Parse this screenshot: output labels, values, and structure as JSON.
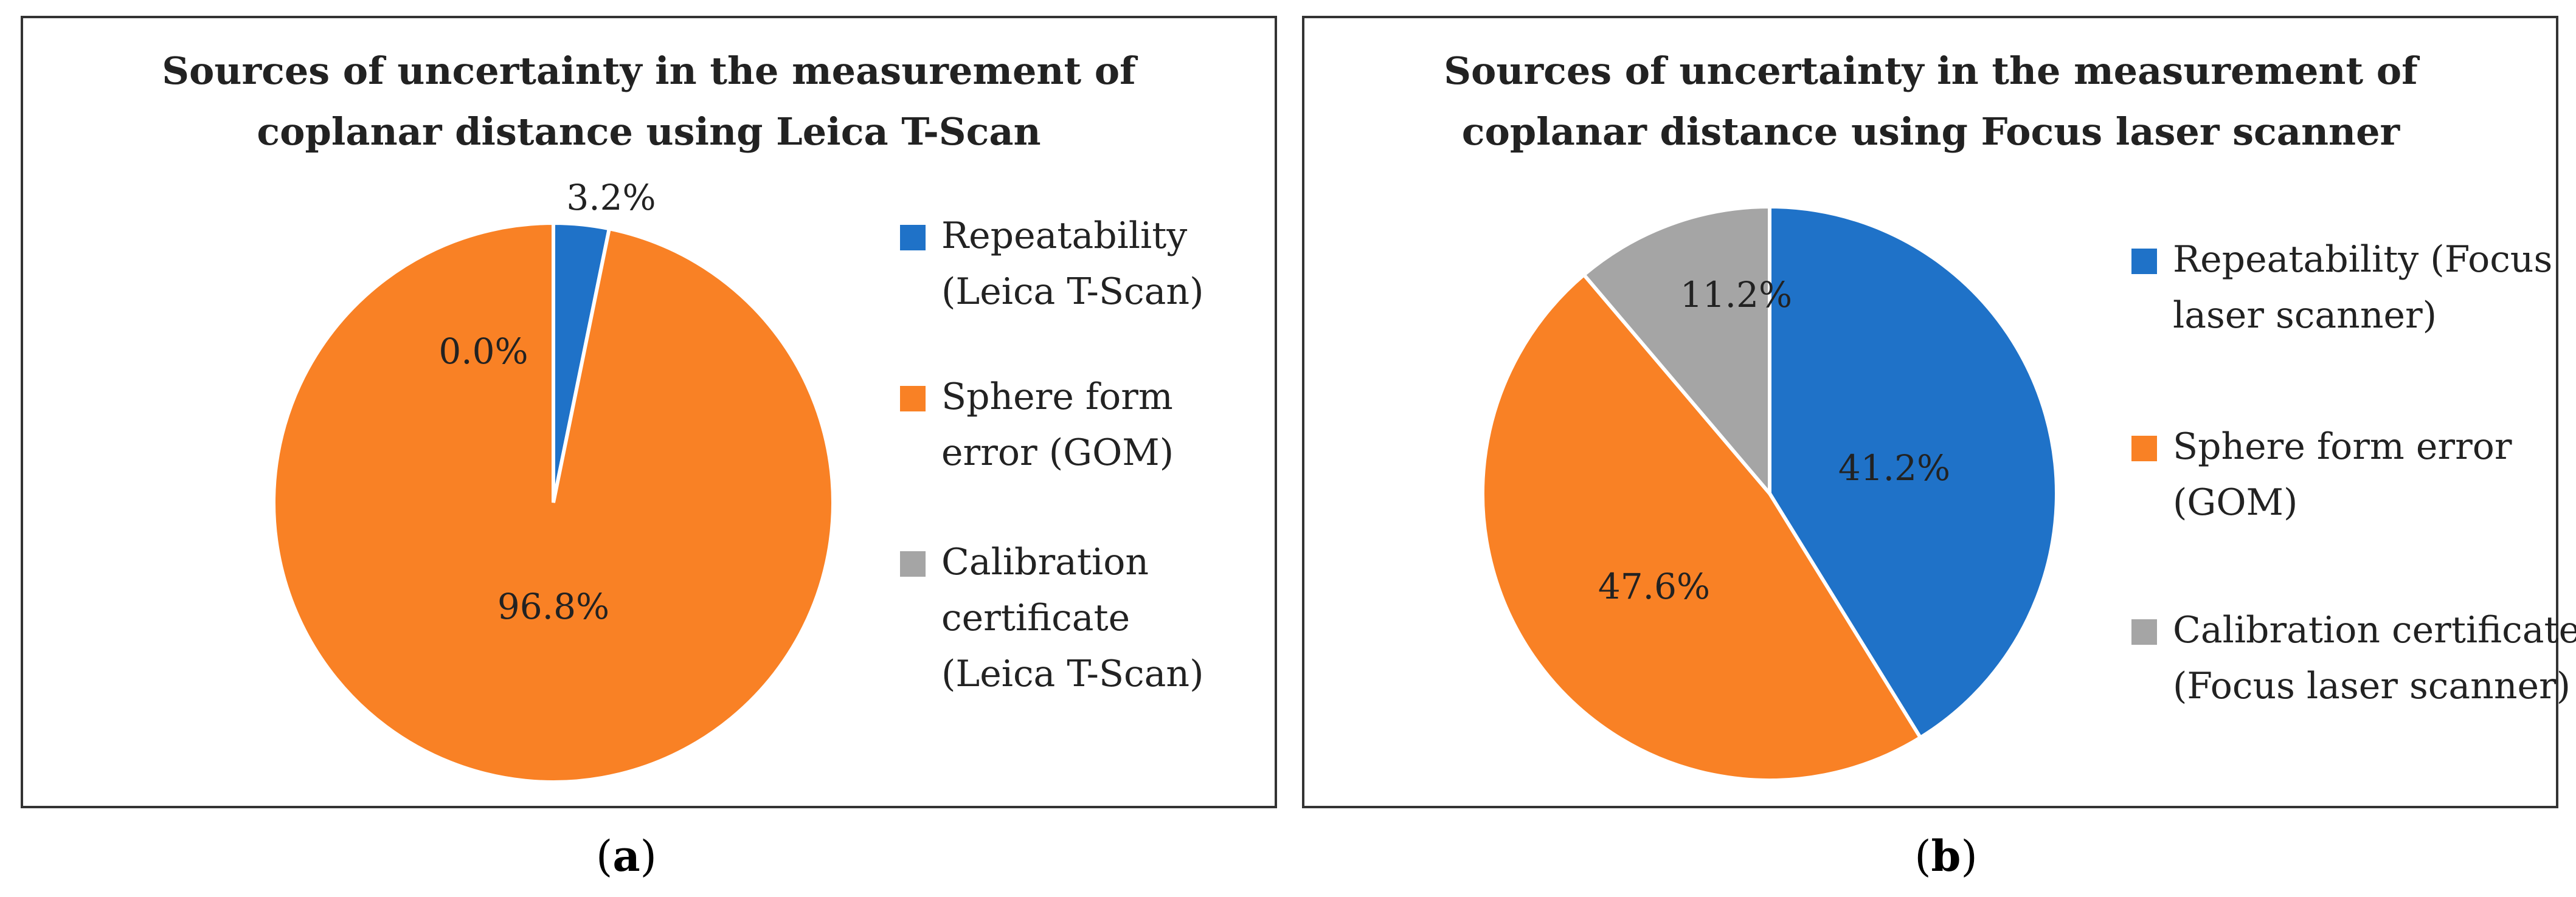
{
  "chart_data": [
    {
      "type": "pie",
      "title_lines": [
        "Sources of uncertainty in the measurement of",
        "coplanar distance using Leica T-Scan"
      ],
      "slices": [
        {
          "label_lines": [
            "Repeatability",
            "(Leica T-Scan)"
          ],
          "value": 3.2,
          "value_label": "3.2%",
          "color": "#1f72c8"
        },
        {
          "label_lines": [
            "Sphere form",
            "error (GOM)"
          ],
          "value": 96.8,
          "value_label": "96.8%",
          "color": "#f98125"
        },
        {
          "label_lines": [
            "Calibration",
            "certificate",
            "(Leica T-Scan)"
          ],
          "value": 0.0,
          "value_label": "0.0%",
          "color": "#a5a5a5"
        }
      ],
      "caption_prefix": "(",
      "caption_letter": "a",
      "caption_suffix": ")"
    },
    {
      "type": "pie",
      "title_lines": [
        "Sources of uncertainty in the measurement of",
        "coplanar distance using Focus laser scanner"
      ],
      "slices": [
        {
          "label_lines": [
            "Repeatability (Focus",
            "laser scanner)"
          ],
          "value": 41.2,
          "value_label": "41.2%",
          "color": "#1f72c8"
        },
        {
          "label_lines": [
            "Sphere form error",
            "(GOM)"
          ],
          "value": 47.6,
          "value_label": "47.6%",
          "color": "#f98125"
        },
        {
          "label_lines": [
            "Calibration certificate",
            "(Focus laser scanner)"
          ],
          "value": 11.2,
          "value_label": "11.2%",
          "color": "#a5a5a5"
        }
      ],
      "caption_prefix": "(",
      "caption_letter": "b",
      "caption_suffix": ")"
    }
  ]
}
